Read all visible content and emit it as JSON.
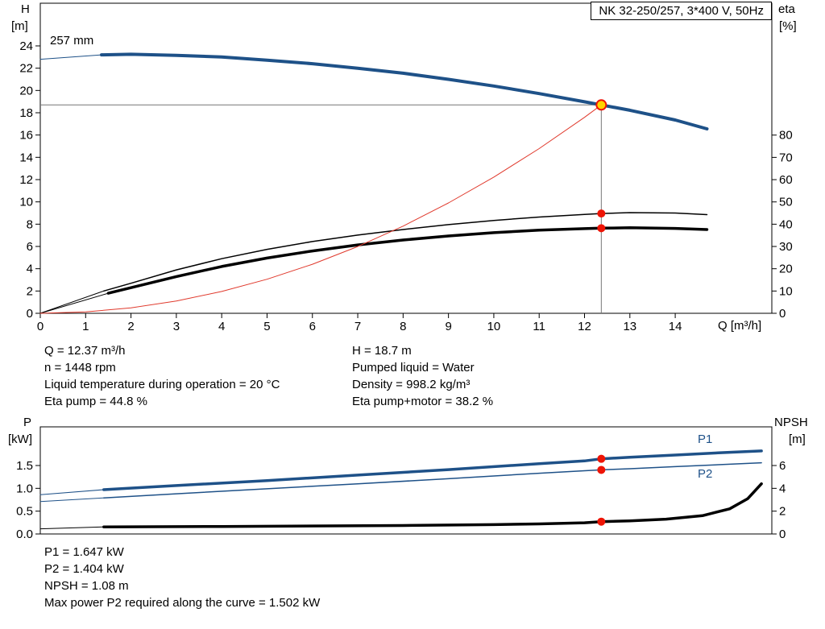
{
  "colors": {
    "blue": "#1e5188",
    "red": "#e0392c",
    "marker_red": "#ee1405",
    "yellow": "#ffd400",
    "black": "#000000",
    "gray": "#777777"
  },
  "header": {
    "title_box": "NK 32-250/257, 3*400 V, 50Hz"
  },
  "top_chart_labels": {
    "y_left_1": "H",
    "y_left_2": "[m]",
    "y_right_1": "eta",
    "y_right_2": "[%]",
    "x_axis": "Q [m³/h]",
    "impeller": "257 mm"
  },
  "bottom_chart_labels": {
    "y_left_1": "P",
    "y_left_2": "[kW]",
    "y_right_1": "NPSH",
    "y_right_2": "[m]",
    "p1": "P1",
    "p2": "P2"
  },
  "info_panel": {
    "left": [
      "Q = 12.37 m³/h",
      "n = 1448 rpm",
      "Liquid temperature during operation = 20 °C",
      "Eta pump = 44.8 %"
    ],
    "right": [
      "H = 18.7 m",
      "Pumped liquid = Water",
      "Density = 998.2 kg/m³",
      "Eta pump+motor = 38.2 %"
    ]
  },
  "footer": {
    "lines": [
      "P1 = 1.647 kW",
      "P2 = 1.404 kW",
      "NPSH = 1.08 m",
      "Max power P2 required along the curve = 1.502 kW"
    ]
  },
  "chart_data": [
    {
      "type": "line",
      "title": "NK 32-250/257, 3*400 V, 50Hz",
      "xlabel": "Q [m³/h]",
      "ylabel_left": "H [m]",
      "ylabel_right": "eta [%]",
      "xlim": [
        0,
        16.13
      ],
      "ylim_left": [
        0,
        27.83
      ],
      "ylim_right": [
        0,
        139.2
      ],
      "grid": false,
      "x_ticks": [
        {
          "v": 0,
          "label": "0"
        },
        {
          "v": 1,
          "label": "1"
        },
        {
          "v": 2,
          "label": "2"
        },
        {
          "v": 3,
          "label": "3"
        },
        {
          "v": 4,
          "label": "4"
        },
        {
          "v": 5,
          "label": "5"
        },
        {
          "v": 6,
          "label": "6"
        },
        {
          "v": 7,
          "label": "7"
        },
        {
          "v": 8,
          "label": "8"
        },
        {
          "v": 9,
          "label": "9"
        },
        {
          "v": 10,
          "label": "10"
        },
        {
          "v": 11,
          "label": "11"
        },
        {
          "v": 12,
          "label": "12"
        },
        {
          "v": 13,
          "label": "13"
        },
        {
          "v": 14,
          "label": "14"
        }
      ],
      "left_ticks": [
        {
          "v": 0,
          "label": "0"
        },
        {
          "v": 2,
          "label": "2"
        },
        {
          "v": 4,
          "label": "4"
        },
        {
          "v": 6,
          "label": "6"
        },
        {
          "v": 8,
          "label": "8"
        },
        {
          "v": 10,
          "label": "10"
        },
        {
          "v": 12,
          "label": "12"
        },
        {
          "v": 14,
          "label": "14"
        },
        {
          "v": 16,
          "label": "16"
        },
        {
          "v": 18,
          "label": "18"
        },
        {
          "v": 20,
          "label": "20"
        },
        {
          "v": 22,
          "label": "22"
        },
        {
          "v": 24,
          "label": "24"
        }
      ],
      "right_ticks": [
        {
          "v": 0,
          "label": "0"
        },
        {
          "v": 10,
          "label": "10"
        },
        {
          "v": 20,
          "label": "20"
        },
        {
          "v": 30,
          "label": "30"
        },
        {
          "v": 40,
          "label": "40"
        },
        {
          "v": 50,
          "label": "50"
        },
        {
          "v": 60,
          "label": "60"
        },
        {
          "v": 70,
          "label": "70"
        },
        {
          "v": 80,
          "label": "80"
        }
      ],
      "ref_lines": [
        {
          "dir": "v",
          "x": 12.37,
          "y0": 0,
          "y1": 18.7,
          "axis": "left"
        },
        {
          "dir": "h",
          "y": 18.7,
          "x0": 0,
          "x1": 12.37,
          "axis": "left"
        }
      ],
      "series": [
        {
          "name": "pump-curve-leadin",
          "axis": "left",
          "color": "blue",
          "width": 1,
          "points": [
            [
              0,
              22.8
            ],
            [
              1.35,
              23.2
            ]
          ]
        },
        {
          "name": "pump-curve-257mm",
          "axis": "left",
          "color": "blue",
          "width": 4,
          "points": [
            [
              1.35,
              23.2
            ],
            [
              2,
              23.25
            ],
            [
              3,
              23.15
            ],
            [
              4,
              23.0
            ],
            [
              5,
              22.72
            ],
            [
              6,
              22.4
            ],
            [
              7,
              22.0
            ],
            [
              8,
              21.55
            ],
            [
              9,
              21.0
            ],
            [
              10,
              20.4
            ],
            [
              11,
              19.72
            ],
            [
              12,
              18.98
            ],
            [
              12.37,
              18.7
            ],
            [
              13,
              18.22
            ],
            [
              14,
              17.35
            ],
            [
              14.7,
              16.55
            ]
          ]
        },
        {
          "name": "eta-pump-leadin",
          "axis": "right",
          "color": "black",
          "width": 1,
          "points": [
            [
              0,
              0
            ],
            [
              1.4,
              10
            ]
          ]
        },
        {
          "name": "eta-pump-curve",
          "axis": "right",
          "color": "black",
          "width": 1.5,
          "points": [
            [
              1.4,
              10
            ],
            [
              2,
              13.5
            ],
            [
              3,
              19.5
            ],
            [
              4,
              24.5
            ],
            [
              5,
              28.7
            ],
            [
              6,
              32.2
            ],
            [
              7,
              35.1
            ],
            [
              8,
              37.6
            ],
            [
              9,
              39.8
            ],
            [
              10,
              41.7
            ],
            [
              11,
              43.2
            ],
            [
              12,
              44.4
            ],
            [
              12.37,
              44.8
            ],
            [
              13,
              45.2
            ],
            [
              14,
              45.0
            ],
            [
              14.7,
              44.3
            ]
          ]
        },
        {
          "name": "eta-pump-motor-leadin",
          "axis": "right",
          "color": "black",
          "width": 1,
          "points": [
            [
              0,
              0
            ],
            [
              1.5,
              9
            ]
          ]
        },
        {
          "name": "eta-pump-motor-curve",
          "axis": "right",
          "color": "black",
          "width": 3.5,
          "points": [
            [
              1.5,
              9
            ],
            [
              2,
              11.5
            ],
            [
              3,
              16.5
            ],
            [
              4,
              21.0
            ],
            [
              5,
              24.8
            ],
            [
              6,
              28.0
            ],
            [
              7,
              30.7
            ],
            [
              8,
              32.9
            ],
            [
              9,
              34.7
            ],
            [
              10,
              36.2
            ],
            [
              11,
              37.3
            ],
            [
              12,
              38.0
            ],
            [
              12.37,
              38.2
            ],
            [
              13,
              38.4
            ],
            [
              14,
              38.1
            ],
            [
              14.7,
              37.6
            ]
          ]
        },
        {
          "name": "system-resistance-curve",
          "axis": "left",
          "color": "red",
          "width": 1,
          "points": [
            [
              0,
              0
            ],
            [
              1,
              0.12
            ],
            [
              2,
              0.49
            ],
            [
              3,
              1.1
            ],
            [
              4,
              1.96
            ],
            [
              5,
              3.06
            ],
            [
              6,
              4.4
            ],
            [
              7,
              5.99
            ],
            [
              8,
              7.82
            ],
            [
              9,
              9.9
            ],
            [
              10,
              12.22
            ],
            [
              11,
              14.78
            ],
            [
              12,
              17.59
            ],
            [
              12.37,
              18.7
            ]
          ]
        }
      ],
      "markers": [
        {
          "name": "duty-point-marker",
          "x": 12.37,
          "y": 18.7,
          "axis": "left",
          "r": 6,
          "fill": "yellow",
          "stroke": "marker_red",
          "sw": 2
        },
        {
          "name": "eta-pump-point",
          "x": 12.37,
          "y": 44.8,
          "axis": "right",
          "r": 5,
          "fill": "marker_red",
          "stroke": "none",
          "sw": 0
        },
        {
          "name": "eta-pump-motor-point",
          "x": 12.37,
          "y": 38.2,
          "axis": "right",
          "r": 5,
          "fill": "marker_red",
          "stroke": "none",
          "sw": 0
        }
      ]
    },
    {
      "type": "line",
      "title": "Power and NPSH curves",
      "xlabel": "Q [m³/h]",
      "ylabel_left": "P [kW]",
      "ylabel_right": "NPSH [m]",
      "xlim": [
        0,
        16.13
      ],
      "ylim_left": [
        0,
        2.347
      ],
      "ylim_right": [
        0,
        9.39
      ],
      "grid": false,
      "x_ticks": [],
      "left_ticks": [
        {
          "v": 0,
          "label": "0.0"
        },
        {
          "v": 0.5,
          "label": "0.5"
        },
        {
          "v": 1,
          "label": "1.0"
        },
        {
          "v": 1.5,
          "label": "1.5"
        }
      ],
      "right_ticks": [
        {
          "v": 0,
          "label": "0"
        },
        {
          "v": 2,
          "label": "2"
        },
        {
          "v": 4,
          "label": "4"
        },
        {
          "v": 6,
          "label": "6"
        }
      ],
      "ref_lines": [],
      "series": [
        {
          "name": "p1-leadin",
          "axis": "left",
          "color": "blue",
          "width": 1,
          "points": [
            [
              0,
              0.86
            ],
            [
              1.4,
              0.97
            ]
          ]
        },
        {
          "name": "p1-curve",
          "axis": "left",
          "color": "blue",
          "width": 3.5,
          "points": [
            [
              1.4,
              0.97
            ],
            [
              3,
              1.06
            ],
            [
              5,
              1.17
            ],
            [
              7,
              1.29
            ],
            [
              9,
              1.41
            ],
            [
              11,
              1.54
            ],
            [
              12,
              1.6
            ],
            [
              12.37,
              1.647
            ],
            [
              13,
              1.68
            ],
            [
              14,
              1.73
            ],
            [
              15,
              1.78
            ],
            [
              15.9,
              1.82
            ]
          ]
        },
        {
          "name": "p2-leadin",
          "axis": "left",
          "color": "blue",
          "width": 1,
          "points": [
            [
              0,
              0.71
            ],
            [
              1.4,
              0.79
            ]
          ]
        },
        {
          "name": "p2-curve",
          "axis": "left",
          "color": "blue",
          "width": 1.5,
          "points": [
            [
              1.4,
              0.79
            ],
            [
              3,
              0.88
            ],
            [
              5,
              0.99
            ],
            [
              7,
              1.1
            ],
            [
              9,
              1.21
            ],
            [
              11,
              1.33
            ],
            [
              12,
              1.385
            ],
            [
              12.37,
              1.404
            ],
            [
              13,
              1.43
            ],
            [
              14,
              1.475
            ],
            [
              15,
              1.52
            ],
            [
              15.9,
              1.56
            ]
          ]
        },
        {
          "name": "npsh-leadin",
          "axis": "right",
          "color": "black",
          "width": 1,
          "points": [
            [
              0,
              0.45
            ],
            [
              1.4,
              0.62
            ]
          ]
        },
        {
          "name": "npsh-curve",
          "axis": "right",
          "color": "black",
          "width": 3.5,
          "points": [
            [
              1.4,
              0.62
            ],
            [
              4,
              0.66
            ],
            [
              8,
              0.74
            ],
            [
              10,
              0.82
            ],
            [
              11,
              0.88
            ],
            [
              12,
              0.98
            ],
            [
              12.37,
              1.08
            ],
            [
              13,
              1.15
            ],
            [
              13.8,
              1.3
            ],
            [
              14.6,
              1.6
            ],
            [
              15.2,
              2.2
            ],
            [
              15.6,
              3.1
            ],
            [
              15.9,
              4.4
            ]
          ]
        }
      ],
      "markers": [
        {
          "name": "p1-point",
          "x": 12.37,
          "y": 1.647,
          "axis": "left",
          "r": 5,
          "fill": "marker_red",
          "stroke": "none",
          "sw": 0
        },
        {
          "name": "p2-point",
          "x": 12.37,
          "y": 1.404,
          "axis": "left",
          "r": 5,
          "fill": "marker_red",
          "stroke": "none",
          "sw": 0
        },
        {
          "name": "npsh-point",
          "x": 12.37,
          "y": 1.08,
          "axis": "right",
          "r": 5,
          "fill": "marker_red",
          "stroke": "none",
          "sw": 0
        }
      ]
    }
  ]
}
